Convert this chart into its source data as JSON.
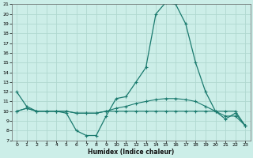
{
  "xlabel": "Humidex (Indice chaleur)",
  "bg_color": "#cceee8",
  "line_color": "#1a7a6e",
  "grid_color": "#b0d8d0",
  "xmin": -0.5,
  "xmax": 23.5,
  "ymin": 7,
  "ymax": 21,
  "x_ticks": [
    0,
    1,
    2,
    3,
    4,
    5,
    6,
    7,
    8,
    9,
    10,
    11,
    12,
    13,
    14,
    15,
    16,
    17,
    18,
    19,
    20,
    21,
    22,
    23
  ],
  "y_ticks": [
    7,
    8,
    9,
    10,
    11,
    12,
    13,
    14,
    15,
    16,
    17,
    18,
    19,
    20,
    21
  ],
  "line1_x": [
    0,
    1,
    2,
    3,
    4,
    5,
    6,
    7,
    8,
    9,
    10,
    11,
    12,
    13,
    14,
    15,
    16,
    17,
    18,
    19,
    20,
    21,
    22,
    23
  ],
  "line1_y": [
    12.0,
    10.5,
    10.0,
    10.0,
    10.0,
    9.8,
    8.0,
    7.5,
    7.5,
    9.5,
    11.3,
    11.5,
    13.0,
    14.5,
    20.0,
    21.2,
    21.0,
    19.0,
    15.0,
    12.0,
    10.0,
    9.2,
    9.8,
    8.5
  ],
  "line2_x": [
    0,
    1,
    2,
    3,
    4,
    5,
    6,
    7,
    8,
    9,
    10,
    11,
    12,
    13,
    14,
    15,
    16,
    17,
    18,
    19,
    20,
    21,
    22,
    23
  ],
  "line2_y": [
    10.0,
    10.3,
    10.0,
    10.0,
    10.0,
    10.0,
    9.8,
    9.8,
    9.8,
    10.0,
    10.3,
    10.5,
    10.8,
    11.0,
    11.2,
    11.3,
    11.3,
    11.2,
    11.0,
    10.5,
    10.0,
    9.5,
    9.5,
    8.5
  ],
  "line3_x": [
    0,
    1,
    2,
    3,
    4,
    5,
    6,
    7,
    8,
    9,
    10,
    11,
    12,
    13,
    14,
    15,
    16,
    17,
    18,
    19,
    20,
    21,
    22,
    23
  ],
  "line3_y": [
    10.0,
    10.3,
    10.0,
    10.0,
    10.0,
    10.0,
    9.8,
    9.8,
    9.8,
    10.0,
    10.0,
    10.0,
    10.0,
    10.0,
    10.0,
    10.0,
    10.0,
    10.0,
    10.0,
    10.0,
    10.0,
    10.0,
    10.0,
    8.5
  ]
}
